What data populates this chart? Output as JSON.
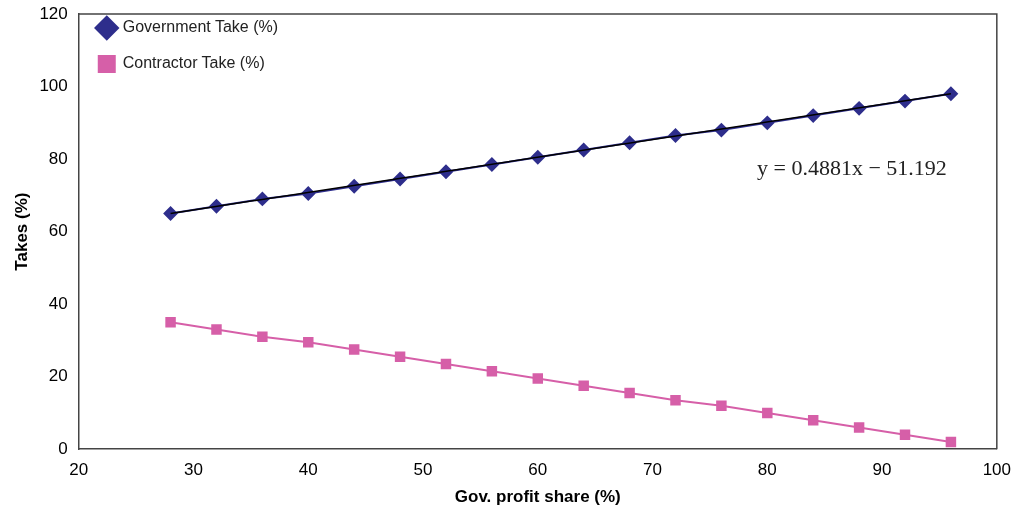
{
  "chart_data": {
    "type": "line",
    "xlabel": "Gov. profit share (%)",
    "ylabel": "Takes (%)",
    "x": [
      28,
      32,
      36,
      40,
      44,
      48,
      52,
      56,
      60,
      64,
      68,
      72,
      76,
      80,
      84,
      88,
      92,
      96
    ],
    "series": [
      {
        "name": "Government Take (%)",
        "color": "#2e2e8c",
        "marker": "diamond",
        "values": [
          65,
          67,
          69,
          70.5,
          72.5,
          74.5,
          76.5,
          78.5,
          80.5,
          82.5,
          84.5,
          86.5,
          88,
          90,
          92,
          94,
          96,
          98
        ]
      },
      {
        "name": "Contractor Take (%)",
        "color": "#d65fa8",
        "marker": "square",
        "values": [
          35,
          33,
          31,
          29.5,
          27.5,
          25.5,
          23.5,
          21.5,
          19.5,
          17.5,
          15.5,
          13.5,
          12,
          10,
          8,
          6,
          4,
          2
        ]
      },
      {
        "type": "line",
        "color": "#000000",
        "marker": "none",
        "x": [
          28,
          96
        ],
        "values": [
          65,
          98
        ]
      }
    ],
    "annotations": [
      "y = 0.4881x − 51.192"
    ],
    "xlim": [
      20,
      100
    ],
    "xticks": [
      20,
      30,
      40,
      50,
      60,
      70,
      80,
      90,
      100
    ],
    "ylim": [
      0,
      120
    ],
    "yticks": [
      0,
      20,
      40,
      60,
      80,
      100,
      120
    ],
    "grid": false,
    "legend": "top left"
  }
}
